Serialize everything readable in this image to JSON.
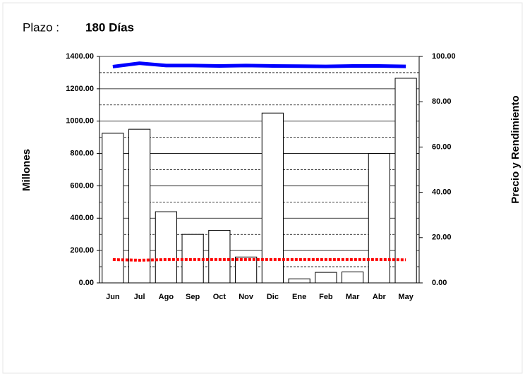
{
  "chart_data": {
    "type": "bar",
    "heading_label": "Plazo :",
    "heading_value": "180 Días",
    "y_label": "Millones",
    "y2_label": "Precio y Rendimiento",
    "categories": [
      "Jun",
      "Jul",
      "Ago",
      "Sep",
      "Oct",
      "Nov",
      "Dic",
      "Ene",
      "Feb",
      "Mar",
      "Abr",
      "May"
    ],
    "series": [
      {
        "type": "bar",
        "color": "#ffffff",
        "values": [
          925,
          950,
          440,
          300,
          325,
          160,
          1050,
          25,
          65,
          68,
          800,
          1265
        ]
      },
      {
        "type": "line",
        "axis": "y2",
        "color": "#0000ff",
        "dashed": false,
        "values": [
          95.5,
          97,
          96,
          96,
          95.8,
          96,
          95.8,
          95.7,
          95.6,
          95.8,
          95.8,
          95.6
        ]
      },
      {
        "type": "line",
        "axis": "y2",
        "color": "#ff0000",
        "dashed": true,
        "values": [
          10.3,
          10,
          10.3,
          10.3,
          10.3,
          10.3,
          10.3,
          10.3,
          10.3,
          10.3,
          10.3,
          10.2
        ]
      }
    ],
    "ylim": [
      0,
      1400
    ],
    "yticks": [
      {
        "value": 0,
        "label": "0.00"
      },
      {
        "value": 200,
        "label": "200.00"
      },
      {
        "value": 400,
        "label": "400.00"
      },
      {
        "value": 600,
        "label": "600.00"
      },
      {
        "value": 800,
        "label": "800.00"
      },
      {
        "value": 1000,
        "label": "1000.00"
      },
      {
        "value": 1200,
        "label": "1200.00"
      },
      {
        "value": 1400,
        "label": "1400.00"
      }
    ],
    "minor_yticks": [
      100,
      300,
      500,
      700,
      900,
      1100,
      1300
    ],
    "y2lim": [
      0,
      100
    ],
    "y2ticks": [
      {
        "value": 0,
        "label": "0.00"
      },
      {
        "value": 20,
        "label": "20.00"
      },
      {
        "value": 40,
        "label": "40.00"
      },
      {
        "value": 60,
        "label": "60.00"
      },
      {
        "value": 80,
        "label": "80.00"
      },
      {
        "value": 100,
        "label": "100.00"
      }
    ],
    "grid": true
  }
}
